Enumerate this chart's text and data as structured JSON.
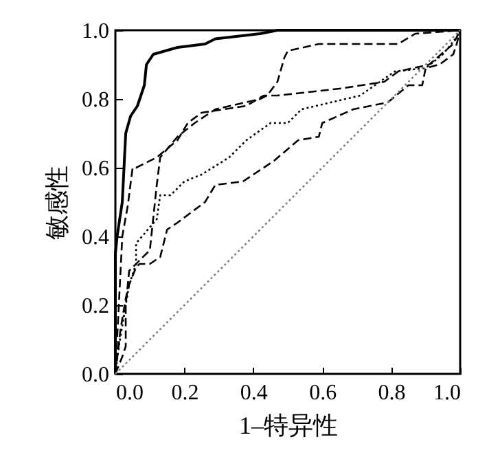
{
  "chart_data": {
    "type": "line",
    "xlabel": "1–特异性",
    "ylabel": "敏感性",
    "xlim": [
      0,
      1
    ],
    "ylim": [
      0,
      1
    ],
    "xticks": [
      {
        "value": 0,
        "label": "0.0"
      },
      0.2,
      0.4,
      0.6,
      0.8,
      {
        "value": 1,
        "label": "1.0"
      }
    ],
    "yticks": [
      {
        "value": 0,
        "label": "0.0"
      },
      0.2,
      0.4,
      0.6,
      0.8,
      {
        "value": 1,
        "label": "1.0"
      }
    ],
    "grid": false,
    "marker": "none",
    "series": [
      {
        "color": "#000000",
        "line_style": "solid",
        "x": [
          0,
          0,
          0.005,
          0.02,
          0.03,
          0.044,
          0.064,
          0.084,
          0.09,
          0.11,
          0.18,
          0.26,
          0.29,
          0.42,
          0.47,
          1
        ],
        "values": [
          0,
          0.35,
          0.4,
          0.5,
          0.7,
          0.75,
          0.78,
          0.84,
          0.9,
          0.93,
          0.95,
          0.96,
          0.975,
          0.99,
          1,
          1
        ]
      },
      {
        "color": "#000000",
        "line_style": "dashed",
        "x": [
          0,
          0.02,
          0.03,
          0.03,
          0.04,
          0.1,
          0.12,
          0.13,
          0.18,
          0.23,
          0.29,
          0.42,
          0.44,
          0.47,
          0.49,
          0.5,
          0.59,
          0.82,
          0.87,
          1
        ],
        "values": [
          0,
          0.05,
          0.08,
          0.2,
          0.3,
          0.36,
          0.55,
          0.63,
          0.69,
          0.73,
          0.77,
          0.8,
          0.81,
          0.85,
          0.92,
          0.94,
          0.96,
          0.96,
          0.99,
          1
        ]
      },
      {
        "color": "#000000",
        "line_style": "dashed",
        "x": [
          0,
          0.01,
          0.02,
          0.036,
          0.05,
          0.06,
          0.12,
          0.18,
          0.21,
          0.25,
          0.38,
          0.43,
          0.47,
          0.65,
          0.78,
          0.82,
          0.91,
          0.98,
          1
        ],
        "values": [
          0,
          0.2,
          0.4,
          0.49,
          0.6,
          0.6,
          0.63,
          0.68,
          0.73,
          0.76,
          0.78,
          0.81,
          0.81,
          0.83,
          0.85,
          0.88,
          0.9,
          0.96,
          1
        ]
      },
      {
        "color": "#000000",
        "line_style": "dotted",
        "x": [
          0,
          0.01,
          0.03,
          0.04,
          0.06,
          0.06,
          0.12,
          0.13,
          0.16,
          0.2,
          0.25,
          0.33,
          0.38,
          0.45,
          0.5,
          0.54,
          0.71,
          0.81,
          0.9,
          0.95,
          0.99,
          1
        ],
        "values": [
          0,
          0.08,
          0.2,
          0.26,
          0.32,
          0.38,
          0.45,
          0.52,
          0.52,
          0.56,
          0.58,
          0.63,
          0.68,
          0.73,
          0.73,
          0.77,
          0.81,
          0.88,
          0.89,
          0.93,
          0.98,
          1
        ]
      },
      {
        "color": "#000000",
        "line_style": "dashed",
        "x": [
          0,
          0.015,
          0.03,
          0.04,
          0.06,
          0.07,
          0.1,
          0.13,
          0.15,
          0.18,
          0.22,
          0.26,
          0.29,
          0.37,
          0.46,
          0.53,
          0.59,
          0.6,
          0.69,
          0.79,
          0.85,
          0.89,
          0.9,
          0.94,
          0.98,
          0.99,
          1
        ],
        "values": [
          0,
          0.13,
          0.22,
          0.26,
          0.31,
          0.32,
          0.32,
          0.34,
          0.42,
          0.44,
          0.47,
          0.5,
          0.55,
          0.56,
          0.62,
          0.68,
          0.69,
          0.73,
          0.77,
          0.79,
          0.84,
          0.84,
          0.89,
          0.9,
          0.93,
          0.96,
          1
        ]
      },
      {
        "color": "#808080",
        "line_style": "dotted",
        "x": [
          0,
          1
        ],
        "values": [
          0,
          1
        ]
      }
    ]
  }
}
